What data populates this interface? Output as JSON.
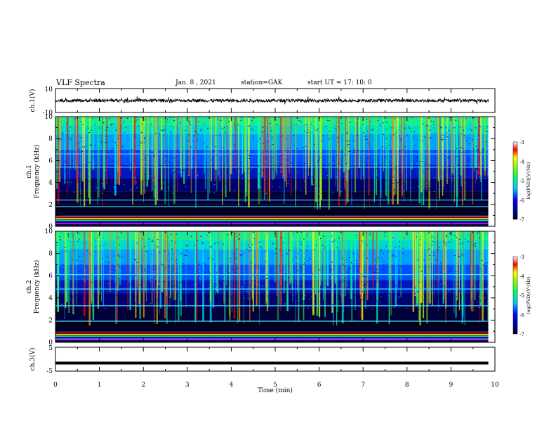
{
  "header": {
    "title": "VLF Spectra",
    "date": "Jan. 8 , 2021",
    "station": "station=GAK",
    "start": "start UT =  17: 10: 0"
  },
  "chart_data": [
    {
      "type": "line",
      "panel": "ch1-waveform",
      "ylabel": "ch.1(V)",
      "yticklabels": [
        "10",
        "-10"
      ],
      "ylim": [
        -10,
        10
      ],
      "xlim": [
        0,
        10
      ],
      "description_values": "noisy waveform centred near 0 V with amplitude about ±2 V over 0–9.85 min"
    },
    {
      "type": "heatmap",
      "panel": "ch1-spectrogram",
      "ylabel": "ch.1\nFrequency (kHz)",
      "yticks": [
        0,
        2,
        4,
        6,
        8,
        10
      ],
      "yticklabels": [
        "0",
        "2",
        "4",
        "6",
        "8",
        "10"
      ],
      "ylim": [
        0,
        10
      ],
      "xlim": [
        0,
        10
      ],
      "colorbar": {
        "label": "log(PSD)(V²/Hz)",
        "ticks": [
          -3,
          -4,
          -5,
          -6,
          -7
        ],
        "ticklabels": [
          "-3",
          "-4",
          "-5",
          "-6",
          "-7"
        ],
        "range": [
          -7,
          -3
        ]
      },
      "lines_khz": [
        0.9,
        1.8,
        2.4,
        5.4,
        6.6
      ]
    },
    {
      "type": "heatmap",
      "panel": "ch2-spectrogram",
      "ylabel": "ch.2\nFrequency (kHz)",
      "yticks": [
        0,
        2,
        4,
        6,
        8,
        10
      ],
      "yticklabels": [
        "0",
        "2",
        "4",
        "6",
        "8",
        "10"
      ],
      "ylim": [
        0,
        10
      ],
      "xlim": [
        0,
        10
      ],
      "colorbar": {
        "label": "log(PSD)(V²/Hz)",
        "ticks": [
          -3,
          -4,
          -5,
          -6,
          -7
        ],
        "ticklabels": [
          "-3",
          "-4",
          "-5",
          "-6",
          "-7"
        ],
        "range": [
          -7,
          -3
        ]
      },
      "lines_khz": [
        0.3,
        1.9,
        3.3,
        4.8,
        6.1
      ]
    },
    {
      "type": "line",
      "panel": "ch3-waveform",
      "ylabel": "ch.3(V)",
      "yticklabels": [
        "5",
        "-5"
      ],
      "ylim": [
        -5,
        5
      ],
      "xlim": [
        0,
        10
      ],
      "x": [
        0,
        9.85
      ],
      "y": [
        -1.6,
        -1.6
      ]
    }
  ],
  "xaxis": {
    "label": "Time (min)",
    "ticks": [
      0,
      1,
      2,
      3,
      4,
      5,
      6,
      7,
      8,
      9,
      10
    ],
    "ticklabels": [
      "0",
      "1",
      "2",
      "3",
      "4",
      "5",
      "6",
      "7",
      "8",
      "9",
      "10"
    ]
  }
}
